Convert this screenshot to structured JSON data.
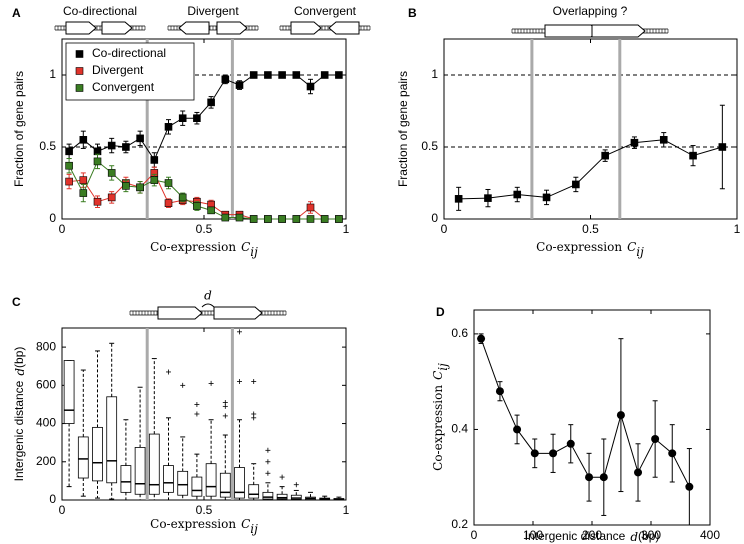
{
  "chart_data": [
    {
      "type": "line",
      "panel": "A",
      "diagrams": [
        "Co-directional",
        "Divergent",
        "Convergent"
      ],
      "x": [
        0.025,
        0.075,
        0.125,
        0.175,
        0.225,
        0.275,
        0.325,
        0.375,
        0.425,
        0.475,
        0.525,
        0.575,
        0.625,
        0.675,
        0.725,
        0.775,
        0.825,
        0.875,
        0.925,
        0.975
      ],
      "series": [
        {
          "name": "Co-directional",
          "color": "#000000",
          "values": [
            0.47,
            0.55,
            0.47,
            0.51,
            0.5,
            0.56,
            0.41,
            0.64,
            0.7,
            0.7,
            0.81,
            0.97,
            0.93,
            1.0,
            1.0,
            1.0,
            1.0,
            0.92,
            1.0,
            1.0
          ],
          "errors": [
            0.05,
            0.06,
            0.05,
            0.05,
            0.04,
            0.05,
            0.05,
            0.05,
            0.05,
            0.04,
            0.04,
            0.03,
            0.03,
            0.02,
            0.02,
            0.02,
            0.02,
            0.05,
            0.02,
            0.02
          ]
        },
        {
          "name": "Divergent",
          "color": "#e0332b",
          "values": [
            0.26,
            0.27,
            0.12,
            0.15,
            0.25,
            0.22,
            0.32,
            0.11,
            0.13,
            0.12,
            0.1,
            0.03,
            0.03,
            0,
            0,
            0,
            0,
            0.08,
            0,
            0
          ],
          "errors": [
            0.05,
            0.05,
            0.04,
            0.04,
            0.04,
            0.04,
            0.04,
            0.03,
            0.03,
            0.03,
            0.03,
            0.02,
            0.02,
            0.01,
            0.01,
            0.01,
            0.01,
            0.04,
            0.01,
            0.01
          ]
        },
        {
          "name": "Convergent",
          "color": "#3a7d22",
          "values": [
            0.37,
            0.18,
            0.4,
            0.32,
            0.23,
            0.22,
            0.27,
            0.25,
            0.15,
            0.09,
            0.06,
            0.01,
            0.01,
            0,
            0,
            0,
            0,
            0,
            0,
            0
          ],
          "errors": [
            0.05,
            0.06,
            0.05,
            0.05,
            0.04,
            0.04,
            0.04,
            0.04,
            0.03,
            0.03,
            0.02,
            0.01,
            0.01,
            0.01,
            0.01,
            0.01,
            0.01,
            0.01,
            0.01,
            0.01
          ]
        }
      ],
      "xlim": [
        0,
        1
      ],
      "ylim": [
        0,
        1.25
      ],
      "xticks": [
        0,
        0.5,
        1
      ],
      "yticks": [
        0,
        0.5,
        1
      ],
      "hlines": [
        0.5,
        1
      ],
      "vlines": [
        0.3,
        0.6
      ],
      "legend": "upper left",
      "xlabel": [
        {
          "text": "Co-expression"
        },
        {
          "math": "C",
          "sub": "ij"
        }
      ],
      "ylabel": [
        {
          "text": "Fraction of gene pairs"
        }
      ]
    },
    {
      "type": "line",
      "panel": "B",
      "diagrams": [
        "Overlapping ?"
      ],
      "x": [
        0.05,
        0.15,
        0.25,
        0.35,
        0.45,
        0.55,
        0.65,
        0.75,
        0.85,
        0.95
      ],
      "series": [
        {
          "color": "#000000",
          "values": [
            0.14,
            0.145,
            0.17,
            0.15,
            0.24,
            0.44,
            0.53,
            0.55,
            0.44,
            0.5
          ],
          "errors": [
            0.08,
            0.06,
            0.05,
            0.05,
            0.05,
            0.04,
            0.04,
            0.05,
            0.07,
            0.29
          ]
        }
      ],
      "xlim": [
        0,
        1
      ],
      "ylim": [
        0,
        1.25
      ],
      "xticks": [
        0,
        0.5,
        1
      ],
      "yticks": [
        0,
        0.5,
        1
      ],
      "hlines": [
        0.5,
        1
      ],
      "vlines": [
        0.3,
        0.6
      ],
      "xlabel": [
        {
          "text": "Co-expression"
        },
        {
          "math": "C",
          "sub": "ij"
        }
      ],
      "ylabel": [
        {
          "text": "Fraction of gene pairs"
        }
      ]
    },
    {
      "type": "box",
      "panel": "C",
      "diagrams": [
        "d"
      ],
      "x": [
        0.025,
        0.075,
        0.125,
        0.175,
        0.225,
        0.275,
        0.325,
        0.375,
        0.425,
        0.475,
        0.525,
        0.575,
        0.625,
        0.675,
        0.725,
        0.775,
        0.825,
        0.875,
        0.925,
        0.975
      ],
      "boxes": [
        {
          "low": 70,
          "q1": 400,
          "median": 470,
          "q3": 730,
          "high": 730,
          "outliers": []
        },
        {
          "low": 20,
          "q1": 115,
          "median": 215,
          "q3": 330,
          "high": 680,
          "outliers": []
        },
        {
          "low": 10,
          "q1": 100,
          "median": 195,
          "q3": 380,
          "high": 780,
          "outliers": []
        },
        {
          "low": 5,
          "q1": 90,
          "median": 205,
          "q3": 540,
          "high": 820,
          "outliers": []
        },
        {
          "low": 0,
          "q1": 40,
          "median": 95,
          "q3": 180,
          "high": 420,
          "outliers": []
        },
        {
          "low": 0,
          "q1": 30,
          "median": 85,
          "q3": 275,
          "high": 590,
          "outliers": []
        },
        {
          "low": 0,
          "q1": 30,
          "median": 80,
          "q3": 345,
          "high": 740,
          "outliers": []
        },
        {
          "low": 0,
          "q1": 40,
          "median": 90,
          "q3": 180,
          "high": 430,
          "outliers": [
            670
          ]
        },
        {
          "low": 0,
          "q1": 25,
          "median": 80,
          "q3": 150,
          "high": 330,
          "outliers": [
            600
          ]
        },
        {
          "low": 0,
          "q1": 20,
          "median": 50,
          "q3": 120,
          "high": 240,
          "outliers": [
            450,
            500
          ]
        },
        {
          "low": 0,
          "q1": 20,
          "median": 70,
          "q3": 190,
          "high": 420,
          "outliers": [
            610
          ]
        },
        {
          "low": 0,
          "q1": 15,
          "median": 40,
          "q3": 140,
          "high": 340,
          "outliers": [
            440,
            490,
            510
          ]
        },
        {
          "low": 0,
          "q1": 10,
          "median": 40,
          "q3": 170,
          "high": 420,
          "outliers": [
            620,
            880
          ]
        },
        {
          "low": 0,
          "q1": 10,
          "median": 30,
          "q3": 80,
          "high": 190,
          "outliers": [
            430,
            450,
            620
          ]
        },
        {
          "low": 0,
          "q1": 5,
          "median": 15,
          "q3": 40,
          "high": 90,
          "outliers": [
            140,
            200,
            260
          ]
        },
        {
          "low": 0,
          "q1": 5,
          "median": 12,
          "q3": 30,
          "high": 70,
          "outliers": [
            120
          ]
        },
        {
          "low": 0,
          "q1": 3,
          "median": 10,
          "q3": 25,
          "high": 50,
          "outliers": [
            80
          ]
        },
        {
          "low": 0,
          "q1": 2,
          "median": 8,
          "q3": 15,
          "high": 40,
          "outliers": []
        },
        {
          "low": 0,
          "q1": 2,
          "median": 5,
          "q3": 10,
          "high": 20,
          "outliers": []
        },
        {
          "low": 0,
          "q1": 1,
          "median": 3,
          "q3": 8,
          "high": 15,
          "outliers": []
        }
      ],
      "xlim": [
        0,
        1
      ],
      "ylim": [
        0,
        900
      ],
      "xticks": [
        0,
        0.5,
        1
      ],
      "yticks": [
        0,
        200,
        400,
        600,
        800
      ],
      "vlines": [
        0.3,
        0.6
      ],
      "xlabel": [
        {
          "text": "Co-expression"
        },
        {
          "math": "C",
          "sub": "ij"
        }
      ],
      "ylabel": [
        {
          "text": "Intergenic distance"
        },
        {
          "math": "d",
          "after": "(bp)"
        }
      ]
    },
    {
      "type": "line",
      "panel": "D",
      "x": [
        12,
        44,
        73,
        103,
        134,
        164,
        195,
        220,
        249,
        278,
        307,
        336,
        365
      ],
      "series": [
        {
          "color": "#000000",
          "values": [
            0.59,
            0.48,
            0.4,
            0.35,
            0.35,
            0.37,
            0.3,
            0.3,
            0.43,
            0.31,
            0.38,
            0.35,
            0.28
          ],
          "errors": [
            0.01,
            0.02,
            0.03,
            0.03,
            0.04,
            0.04,
            0.05,
            0.08,
            0.16,
            0.06,
            0.08,
            0.06,
            0.08
          ]
        }
      ],
      "marker": "circle",
      "xlim": [
        0,
        400
      ],
      "ylim": [
        0.2,
        0.65
      ],
      "xticks": [
        0,
        100,
        200,
        300,
        400
      ],
      "yticks": [
        0.2,
        0.4,
        0.6
      ],
      "xlabel": [
        {
          "text": "Intergenic distance"
        },
        {
          "math": "d",
          "after": "(bp)"
        }
      ],
      "ylabel": [
        {
          "text": "Co-expression"
        },
        {
          "math": "C",
          "sub": "ij"
        }
      ]
    }
  ]
}
